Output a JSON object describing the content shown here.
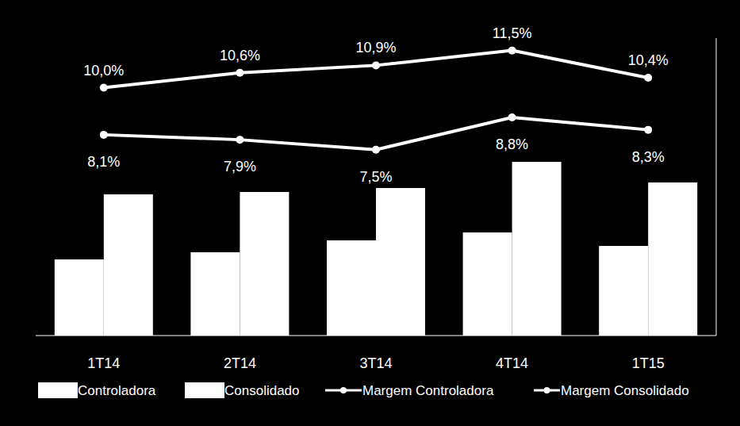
{
  "chart_data": {
    "type": "bar",
    "categories": [
      "1T14",
      "2T14",
      "3T14",
      "4T14",
      "1T15"
    ],
    "ylim": [
      0,
      375
    ],
    "y2lim": [
      0,
      12
    ],
    "tick_labels": "x",
    "grid": false,
    "legend": "bottom",
    "series": [
      {
        "name": "Controladora",
        "type": "bar",
        "color": "#ffffff",
        "values": [
          96,
          105,
          120,
          130,
          113
        ]
      },
      {
        "name": "Consolidado",
        "type": "bar",
        "color": "#ffffff",
        "values": [
          178,
          181,
          186,
          219,
          193
        ]
      },
      {
        "name": "Margem Controladora",
        "type": "line",
        "axis": "y2",
        "color": "#ffffff",
        "marker": "circle",
        "line_style": "solid",
        "data_labels": true,
        "values": [
          8.1,
          7.9,
          7.5,
          8.8,
          8.3
        ],
        "value_labels": [
          "8,1%",
          "7,9%",
          "7,5%",
          "8,8%",
          "8,3%"
        ]
      },
      {
        "name": "Margem Consolidado",
        "type": "line",
        "axis": "y2",
        "color": "#ffffff",
        "marker": "circle",
        "line_style": "solid",
        "data_labels": true,
        "values": [
          10.0,
          10.6,
          10.9,
          11.5,
          10.4
        ],
        "value_labels": [
          "10,0%",
          "10,6%",
          "10,9%",
          "11,5%",
          "10,4%"
        ]
      }
    ]
  }
}
